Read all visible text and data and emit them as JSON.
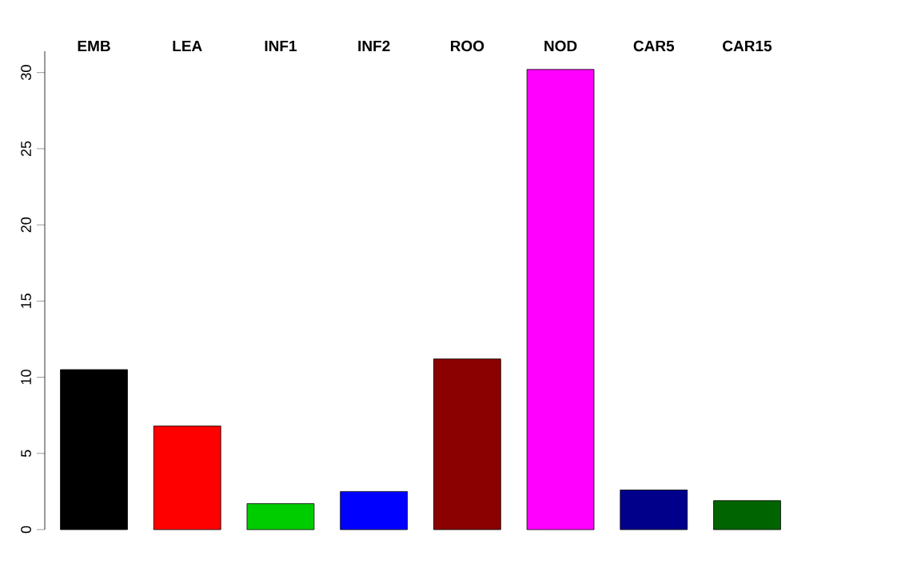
{
  "chart_data": {
    "type": "bar",
    "categories": [
      "EMB",
      "LEA",
      "INF1",
      "INF2",
      "ROO",
      "NOD",
      "CAR5",
      "CAR15"
    ],
    "values": [
      10.5,
      6.8,
      1.7,
      2.5,
      11.2,
      30.2,
      2.6,
      1.9
    ],
    "colors": [
      "#000000",
      "#ff0000",
      "#00cd00",
      "#0000ff",
      "#8b0000",
      "#ff00ff",
      "#00008b",
      "#006400"
    ],
    "ylim": [
      0,
      31.4
    ],
    "yticks": [
      0,
      5,
      10,
      15,
      20,
      25,
      30
    ]
  }
}
